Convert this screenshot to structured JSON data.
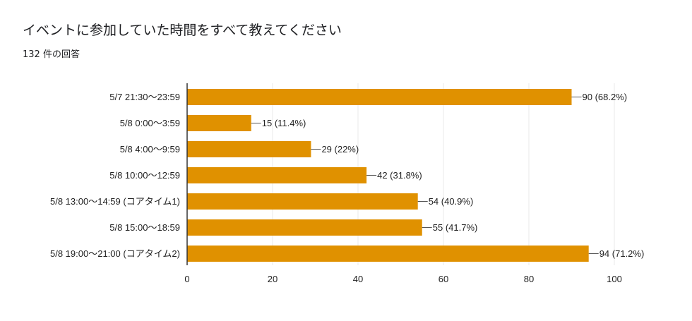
{
  "header": {
    "title": "イベントに参加していた時間をすべて教えてください",
    "response_count": "132 件の回答"
  },
  "colors": {
    "bar": "#E09100",
    "grid": "#E8E8E8",
    "axis": "#333333",
    "leader": "#555555"
  },
  "chart_data": {
    "type": "bar",
    "orientation": "horizontal",
    "categories": [
      "5/7 21:30〜23:59",
      "5/8 0:00〜3:59",
      "5/8 4:00〜9:59",
      "5/8 10:00〜12:59",
      "5/8 13:00〜14:59 (コアタイム1)",
      "5/8 15:00〜18:59",
      "5/8 19:00〜21:00 (コアタイム2)"
    ],
    "values": [
      90,
      15,
      29,
      42,
      54,
      55,
      94
    ],
    "data_labels": [
      "90 (68.2%)",
      "15 (11.4%)",
      "29 (22%)",
      "42 (31.8%)",
      "54 (40.9%)",
      "55 (41.7%)",
      "94 (71.2%)"
    ],
    "xlim": [
      0,
      100
    ],
    "x_ticks": [
      "0",
      "20",
      "40",
      "60",
      "80",
      "100"
    ],
    "grid": true
  }
}
